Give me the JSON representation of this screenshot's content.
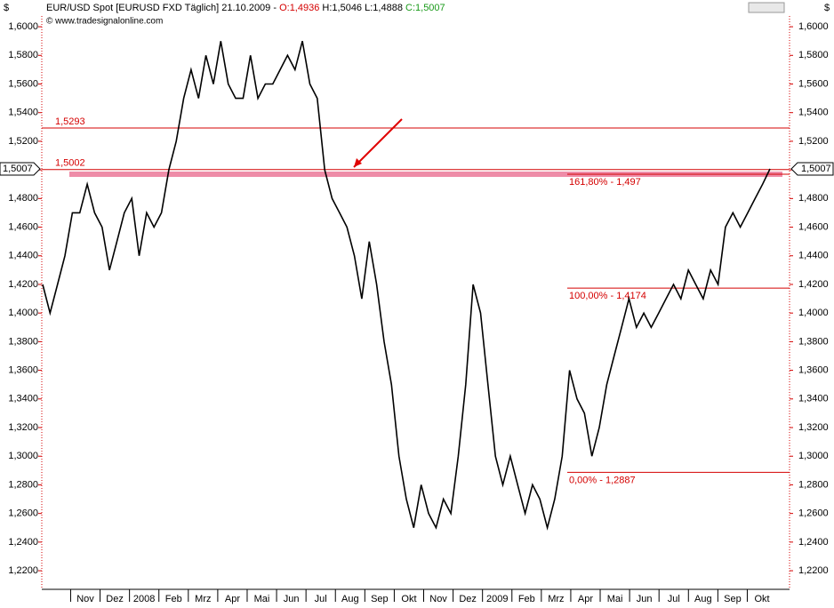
{
  "header": {
    "currency": "$",
    "symbol": "EUR/USD Spot [EURUSD FXD  Täglich] 21.10.2009 -",
    "open": "O:1,4936",
    "high": "H:1,5046",
    "low": "L:1,4888",
    "close": "C:1,5007",
    "source": "© www.tradesignalonline.com"
  },
  "chart_data": {
    "type": "line",
    "color": "#000000",
    "values": [
      1.42,
      1.4,
      1.42,
      1.44,
      1.47,
      1.47,
      1.49,
      1.47,
      1.46,
      1.43,
      1.45,
      1.47,
      1.48,
      1.44,
      1.47,
      1.46,
      1.47,
      1.5,
      1.52,
      1.55,
      1.57,
      1.55,
      1.58,
      1.56,
      1.59,
      1.56,
      1.55,
      1.55,
      1.58,
      1.55,
      1.56,
      1.56,
      1.57,
      1.58,
      1.57,
      1.59,
      1.56,
      1.55,
      1.5,
      1.48,
      1.47,
      1.46,
      1.44,
      1.41,
      1.45,
      1.42,
      1.38,
      1.35,
      1.3,
      1.27,
      1.25,
      1.28,
      1.26,
      1.25,
      1.27,
      1.26,
      1.3,
      1.35,
      1.42,
      1.4,
      1.35,
      1.3,
      1.28,
      1.3,
      1.28,
      1.26,
      1.28,
      1.27,
      1.25,
      1.27,
      1.3,
      1.36,
      1.34,
      1.33,
      1.3,
      1.32,
      1.35,
      1.37,
      1.39,
      1.41,
      1.39,
      1.4,
      1.39,
      1.4,
      1.41,
      1.42,
      1.41,
      1.43,
      1.42,
      1.41,
      1.43,
      1.42,
      1.46,
      1.47,
      1.46,
      1.47,
      1.48,
      1.49,
      1.5007
    ],
    "x_labels": [
      "Nov",
      "Dez",
      "2008",
      "Feb",
      "Mrz",
      "Apr",
      "Mai",
      "Jun",
      "Jul",
      "Aug",
      "Sep",
      "Okt",
      "Nov",
      "Dez",
      "2009",
      "Feb",
      "Mrz",
      "Apr",
      "Mai",
      "Jun",
      "Jul",
      "Aug",
      "Sep",
      "Okt"
    ],
    "ylim": [
      1.207,
      1.6075
    ],
    "yticks": [
      {
        "value": 1.22,
        "label": "1,2200"
      },
      {
        "value": 1.24,
        "label": "1,2400"
      },
      {
        "value": 1.26,
        "label": "1,2600"
      },
      {
        "value": 1.28,
        "label": "1,2800"
      },
      {
        "value": 1.3,
        "label": "1,3000"
      },
      {
        "value": 1.32,
        "label": "1,3200"
      },
      {
        "value": 1.34,
        "label": "1,3400"
      },
      {
        "value": 1.36,
        "label": "1,3600"
      },
      {
        "value": 1.38,
        "label": "1,3800"
      },
      {
        "value": 1.4,
        "label": "1,4000"
      },
      {
        "value": 1.42,
        "label": "1,4200"
      },
      {
        "value": 1.44,
        "label": "1,4400"
      },
      {
        "value": 1.46,
        "label": "1,4600"
      },
      {
        "value": 1.48,
        "label": "1,4800"
      },
      {
        "value": 1.5,
        "label": "1,5000"
      },
      {
        "value": 1.52,
        "label": "1,5200"
      },
      {
        "value": 1.54,
        "label": "1,5400"
      },
      {
        "value": 1.56,
        "label": "1,5600"
      },
      {
        "value": 1.58,
        "label": "1,5800"
      },
      {
        "value": 1.6,
        "label": "1,6000"
      }
    ],
    "hlines": [
      {
        "value": 1.5293,
        "label": "1,5293"
      },
      {
        "value": 1.5002,
        "label": "1,5002"
      }
    ],
    "highlight": 1.497,
    "fib_levels": [
      {
        "value": 1.497,
        "label": "161,80% - 1,497"
      },
      {
        "value": 1.4174,
        "label": "100,00% - 1,4174"
      },
      {
        "value": 1.2887,
        "label": "0,00% - 1,2887"
      }
    ],
    "last_price": {
      "value": 1.5007,
      "label": "1,5007"
    }
  }
}
